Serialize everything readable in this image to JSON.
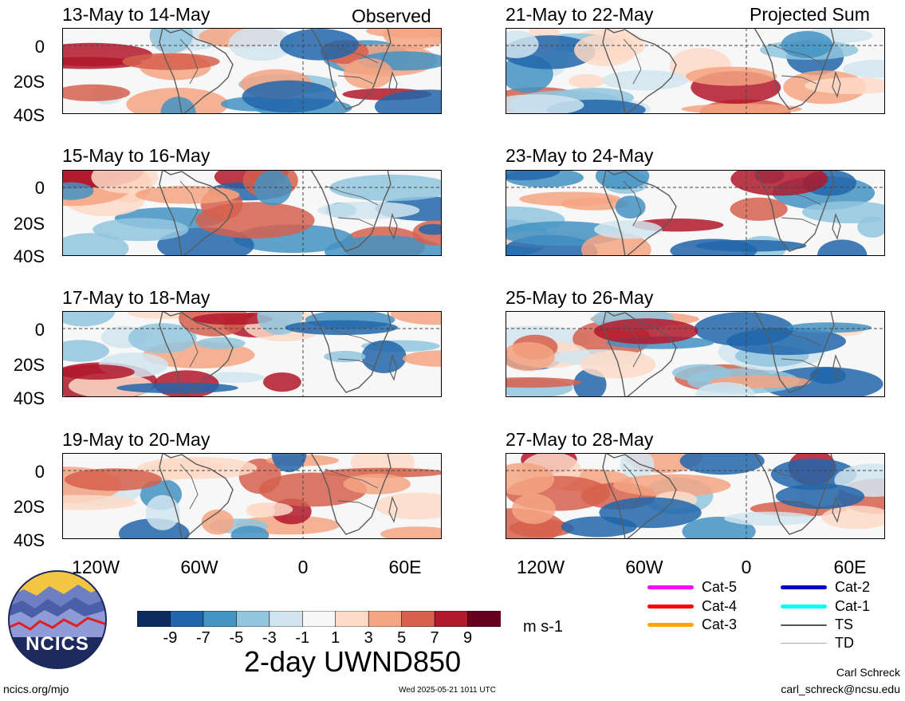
{
  "columns": {
    "left_label": "Observed",
    "right_label": "Projected Sum"
  },
  "panels_left": [
    {
      "title": "13-May to 14-May"
    },
    {
      "title": "15-May to 16-May"
    },
    {
      "title": "17-May to 18-May"
    },
    {
      "title": "19-May to 20-May"
    }
  ],
  "panels_right": [
    {
      "title": "21-May to 22-May"
    },
    {
      "title": "23-May to 24-May"
    },
    {
      "title": "25-May to 26-May"
    },
    {
      "title": "27-May to 28-May"
    }
  ],
  "y_axis": [
    "0",
    "20S",
    "40S"
  ],
  "x_axis": [
    "120W",
    "60W",
    "0",
    "60E"
  ],
  "colorbar": {
    "ticks": [
      "-9",
      "-7",
      "-5",
      "-3",
      "-1",
      "1",
      "3",
      "5",
      "7",
      "9"
    ],
    "colors": [
      "#0c2d5e",
      "#2166ac",
      "#4393c3",
      "#92c5de",
      "#d1e5f0",
      "#f7f7f7",
      "#fddbc7",
      "#f4a582",
      "#d6604d",
      "#b2182b",
      "#67001f"
    ],
    "units": "m s-1",
    "title": "2-day UWND850"
  },
  "legend": [
    {
      "label": "Cat-5",
      "color": "#ff00ff"
    },
    {
      "label": "Cat-4",
      "color": "#ff0000"
    },
    {
      "label": "Cat-3",
      "color": "#ffa500"
    },
    {
      "label": "Cat-2",
      "color": "#0000cc"
    },
    {
      "label": "Cat-1",
      "color": "#00ffff"
    },
    {
      "label": "TS",
      "color": "#555555"
    },
    {
      "label": "TD",
      "color": "#aaaaaa"
    }
  ],
  "logo": {
    "text": "NCICS"
  },
  "footer": {
    "left": "ncics.org/mjo",
    "center": "Wed 2025-05-21 1011 UTC",
    "author": "Carl Schreck",
    "email": "carl_schreck@ncsu.edu"
  }
}
